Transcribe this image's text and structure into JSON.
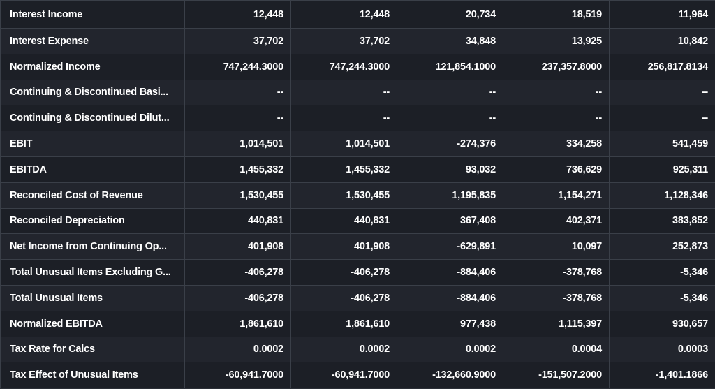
{
  "table": {
    "rows": [
      {
        "label": "Interest Income",
        "values": [
          "12,448",
          "12,448",
          "20,734",
          "18,519",
          "11,964"
        ]
      },
      {
        "label": "Interest Expense",
        "values": [
          "37,702",
          "37,702",
          "34,848",
          "13,925",
          "10,842"
        ]
      },
      {
        "label": "Normalized Income",
        "values": [
          "747,244.3000",
          "747,244.3000",
          "121,854.1000",
          "237,357.8000",
          "256,817.8134"
        ]
      },
      {
        "label": "Continuing & Discontinued Basi...",
        "values": [
          "--",
          "--",
          "--",
          "--",
          "--"
        ]
      },
      {
        "label": "Continuing & Discontinued Dilut...",
        "values": [
          "--",
          "--",
          "--",
          "--",
          "--"
        ]
      },
      {
        "label": "EBIT",
        "values": [
          "1,014,501",
          "1,014,501",
          "-274,376",
          "334,258",
          "541,459"
        ]
      },
      {
        "label": "EBITDA",
        "values": [
          "1,455,332",
          "1,455,332",
          "93,032",
          "736,629",
          "925,311"
        ]
      },
      {
        "label": "Reconciled Cost of Revenue",
        "values": [
          "1,530,455",
          "1,530,455",
          "1,195,835",
          "1,154,271",
          "1,128,346"
        ]
      },
      {
        "label": "Reconciled Depreciation",
        "values": [
          "440,831",
          "440,831",
          "367,408",
          "402,371",
          "383,852"
        ]
      },
      {
        "label": "Net Income from Continuing Op...",
        "values": [
          "401,908",
          "401,908",
          "-629,891",
          "10,097",
          "252,873"
        ]
      },
      {
        "label": "Total Unusual Items Excluding G...",
        "values": [
          "-406,278",
          "-406,278",
          "-884,406",
          "-378,768",
          "-5,346"
        ]
      },
      {
        "label": "Total Unusual Items",
        "values": [
          "-406,278",
          "-406,278",
          "-884,406",
          "-378,768",
          "-5,346"
        ]
      },
      {
        "label": "Normalized EBITDA",
        "values": [
          "1,861,610",
          "1,861,610",
          "977,438",
          "1,115,397",
          "930,657"
        ]
      },
      {
        "label": "Tax Rate for Calcs",
        "values": [
          "0.0002",
          "0.0002",
          "0.0002",
          "0.0004",
          "0.0003"
        ]
      },
      {
        "label": "Tax Effect of Unusual Items",
        "values": [
          "-60,941.7000",
          "-60,941.7000",
          "-132,660.9000",
          "-151,507.2000",
          "-1,401.1866"
        ]
      }
    ]
  }
}
